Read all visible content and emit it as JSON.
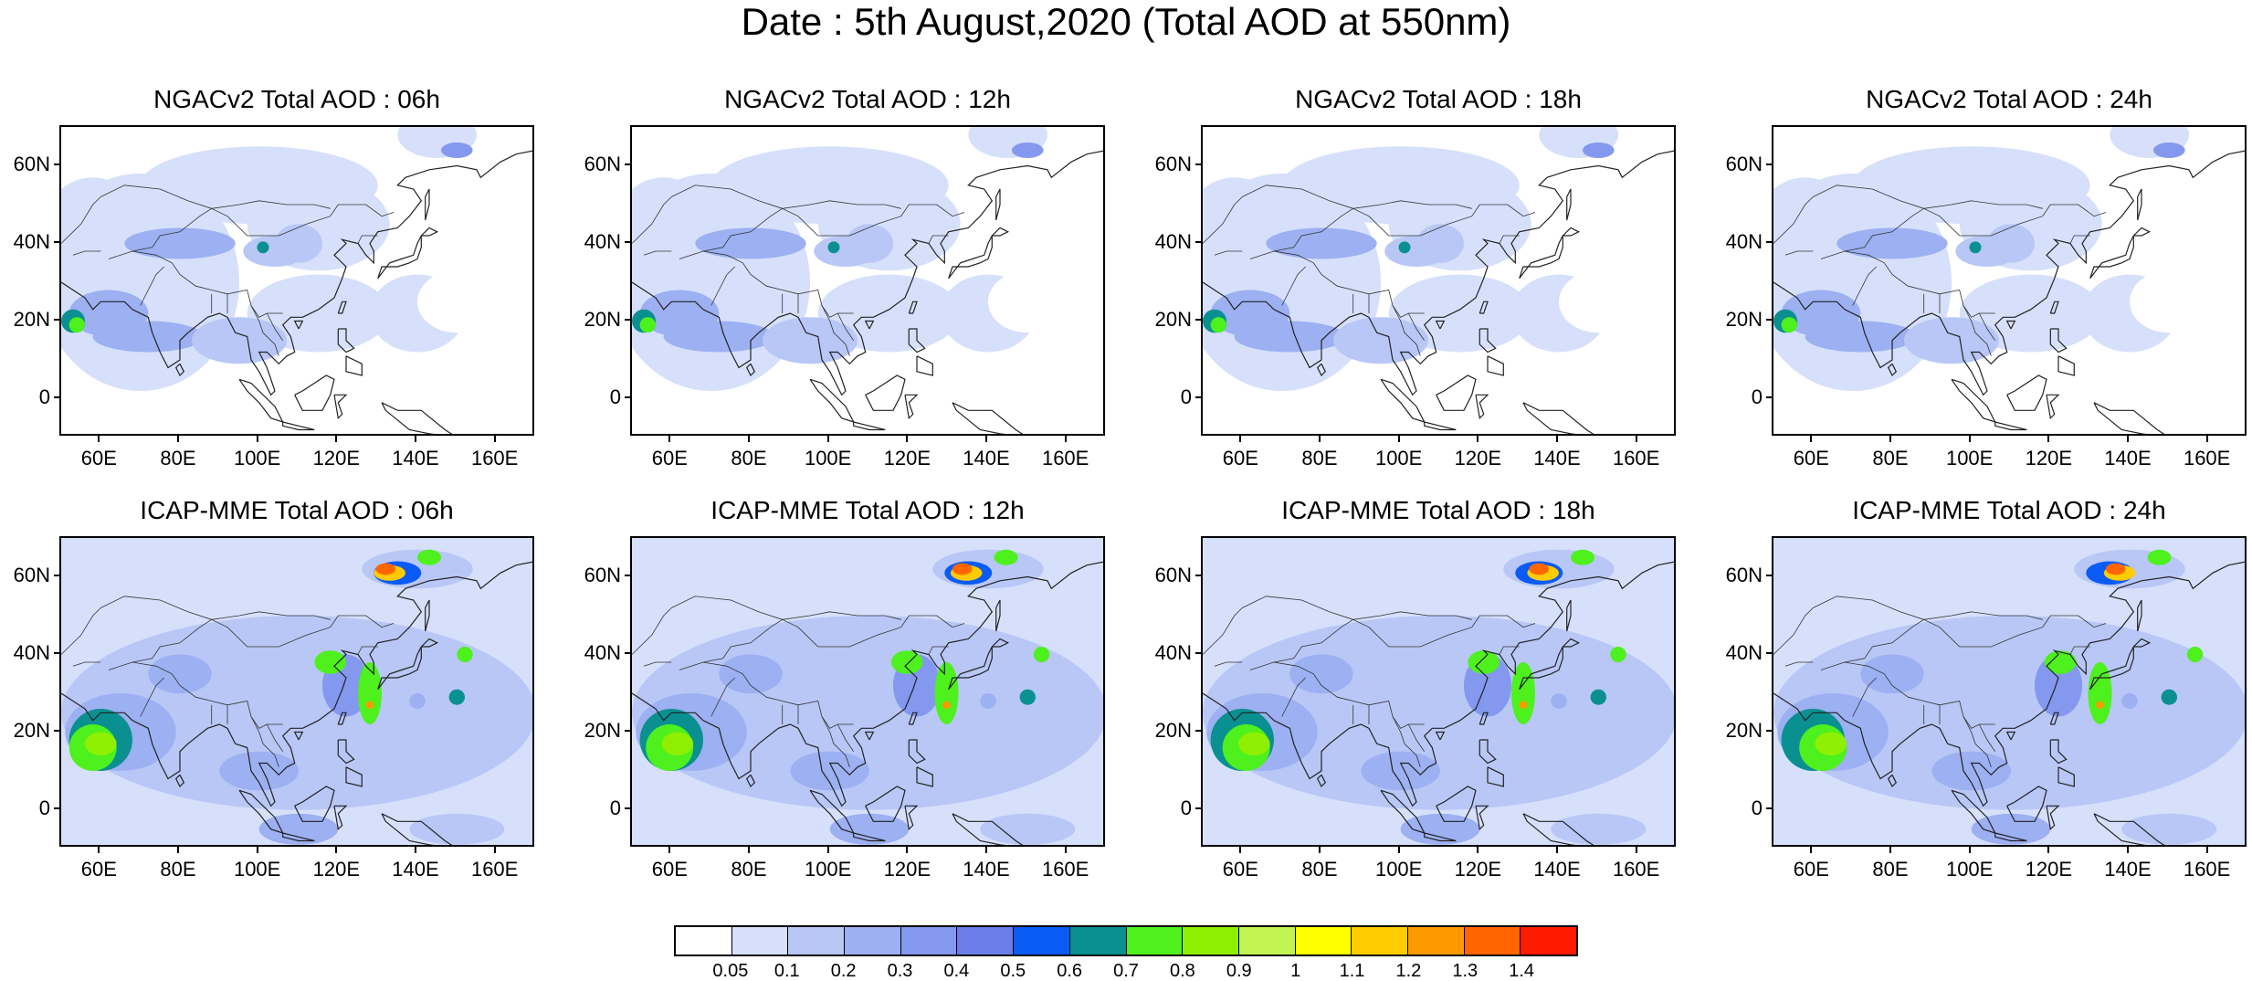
{
  "title": "Date : 5th August,2020 (Total AOD at 550nm)",
  "lat_ticks": [
    "60N",
    "40N",
    "20N",
    "0"
  ],
  "lon_ticks": [
    "60E",
    "80E",
    "100E",
    "120E",
    "140E",
    "160E"
  ],
  "panels": [
    {
      "title": "NGACv2 Total AOD : 06h",
      "model": "ngac"
    },
    {
      "title": "NGACv2 Total AOD : 12h",
      "model": "ngac"
    },
    {
      "title": "NGACv2 Total AOD : 18h",
      "model": "ngac"
    },
    {
      "title": "NGACv2 Total AOD : 24h",
      "model": "ngac"
    },
    {
      "title": "ICAP-MME Total AOD : 06h",
      "model": "icap"
    },
    {
      "title": "ICAP-MME Total AOD : 12h",
      "model": "icap"
    },
    {
      "title": "ICAP-MME Total AOD : 18h",
      "model": "icap"
    },
    {
      "title": "ICAP-MME Total AOD : 24h",
      "model": "icap"
    }
  ],
  "colorbar": {
    "labels": [
      "0.05",
      "0.1",
      "0.2",
      "0.3",
      "0.4",
      "0.5",
      "0.6",
      "0.7",
      "0.8",
      "0.9",
      "1",
      "1.1",
      "1.2",
      "1.3",
      "1.4"
    ],
    "colors": [
      "#ffffff",
      "#d6e0fb",
      "#b8c7f6",
      "#9cb0f2",
      "#8398ee",
      "#6b7de9",
      "#0a5bf5",
      "#0a9090",
      "#4ef01e",
      "#8ef000",
      "#c2f552",
      "#ffff00",
      "#ffcc00",
      "#ff9900",
      "#ff6600",
      "#ff1a00"
    ]
  }
}
